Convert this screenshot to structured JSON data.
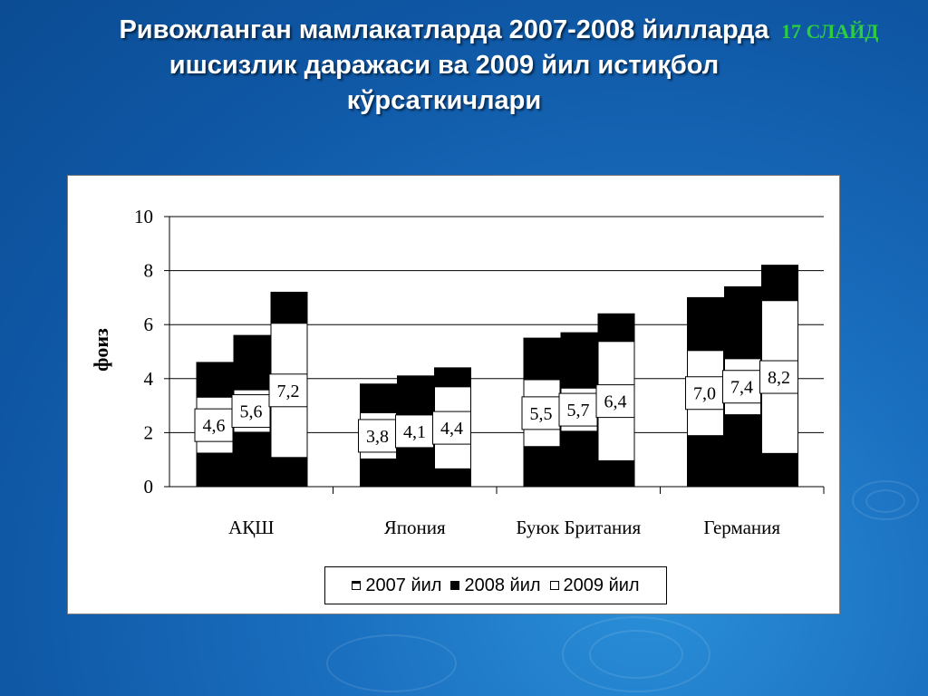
{
  "slide": {
    "title_lines": [
      "Ривожланган мамлакатларда 2007-2008 йилларда",
      "ишсизлик даражаси ва 2009 йил истиқбол",
      "кўрсаткичлари"
    ],
    "number_label": "17 СЛАЙД"
  },
  "colors": {
    "y2007": "#ffffff",
    "y2008": "#000000",
    "y2009": "#ffffff",
    "title": "#ffffff",
    "slide_number": "#2ecc40"
  },
  "chart_data": {
    "type": "bar",
    "title": "",
    "xlabel": "",
    "ylabel": "фоиз",
    "ylim": [
      0,
      10
    ],
    "yticks": [
      0,
      2,
      4,
      6,
      8,
      10
    ],
    "grid": true,
    "legend_position": "bottom",
    "categories": [
      "АҚШ",
      "Япония",
      "Буюк Британия",
      "Германия"
    ],
    "series": [
      {
        "name": "2007 йил",
        "values": [
          4.6,
          3.8,
          5.5,
          7.0
        ],
        "labels": [
          "4,6",
          "3,8",
          "5,5",
          "7,0"
        ]
      },
      {
        "name": "2008 йил",
        "values": [
          5.6,
          4.1,
          5.7,
          7.4
        ],
        "labels": [
          "5,6",
          "4,1",
          "5,7",
          "7,4"
        ]
      },
      {
        "name": "2009 йил",
        "values": [
          7.2,
          4.4,
          6.4,
          8.2
        ],
        "labels": [
          "7,2",
          "4,4",
          "6,4",
          "8,2"
        ]
      }
    ]
  }
}
